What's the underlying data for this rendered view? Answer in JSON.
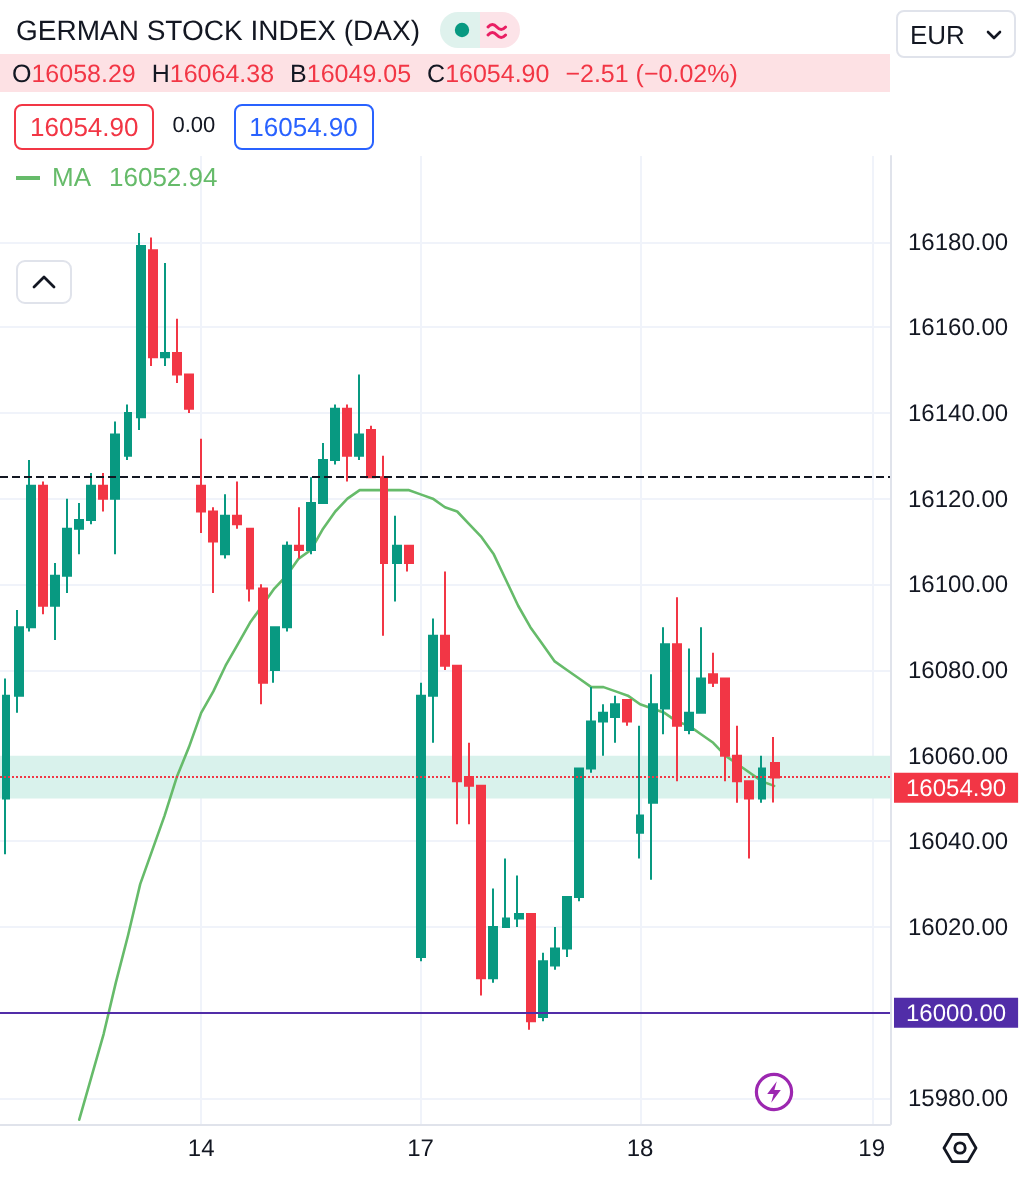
{
  "chart_data": {
    "type": "candlestick",
    "title": "GERMAN STOCK INDEX (DAX)",
    "categories": [
      null,
      null,
      null,
      null,
      null,
      null,
      null,
      null,
      null,
      null,
      null,
      null,
      null,
      null,
      null,
      null,
      "14",
      null,
      null,
      null,
      null,
      null,
      null,
      null,
      null,
      null,
      null,
      null,
      null,
      null,
      null,
      null,
      null,
      null,
      "17",
      null,
      null,
      null,
      null,
      null,
      null,
      null,
      null,
      null,
      null,
      null,
      null,
      null,
      null,
      null,
      null,
      null,
      "18",
      null,
      null,
      null,
      null,
      null,
      null,
      null,
      null,
      null,
      null,
      null,
      null,
      null,
      null,
      null,
      null,
      null,
      null,
      "19",
      null
    ],
    "series": [
      {
        "ohlc": [
          [
            16050,
            16078,
            16037,
            16074
          ],
          [
            16074,
            16094,
            16070,
            16090
          ],
          [
            16090,
            16129,
            16089,
            16123
          ],
          [
            16123,
            16124,
            16093,
            16095
          ],
          [
            16095,
            16105,
            16087,
            16102
          ],
          [
            16102,
            16120,
            16098,
            16113
          ],
          [
            16113,
            16119,
            16107,
            16115
          ],
          [
            16115,
            16126,
            16114,
            16123
          ],
          [
            16123,
            16126,
            16117,
            16120
          ],
          [
            16120,
            16138,
            16107,
            16135
          ],
          [
            16130,
            16142,
            16129,
            16140
          ],
          [
            16139,
            16182,
            16136,
            16179
          ],
          [
            16178,
            16181,
            16151,
            16153
          ],
          [
            16153,
            16175,
            16151,
            16154
          ],
          [
            16154,
            16162,
            16147,
            16149
          ],
          [
            16149,
            16149,
            16140,
            16141
          ],
          [
            16123,
            16134,
            16112,
            16117
          ],
          [
            16117,
            16118,
            16098,
            16110
          ],
          [
            16107,
            16121,
            16106,
            16116
          ],
          [
            16116,
            16124,
            16113,
            16114
          ],
          [
            16113,
            16113,
            16096,
            16099
          ],
          [
            16099,
            16100,
            16072,
            16077
          ],
          [
            16080,
            16090,
            16077,
            16090
          ],
          [
            16090,
            16110,
            16089,
            16109
          ],
          [
            16109,
            16118,
            16106,
            16108
          ],
          [
            16108,
            16125,
            16107,
            16119
          ],
          [
            16119,
            16133,
            16119,
            16129
          ],
          [
            16129,
            16142,
            16128,
            16141
          ],
          [
            16141,
            16142,
            16124,
            16130
          ],
          [
            16130,
            16149,
            16129,
            16135
          ],
          [
            16136,
            16137,
            16125,
            16125
          ],
          [
            16125,
            16130,
            16088,
            16105
          ],
          [
            16105,
            16116,
            16096,
            16109
          ],
          [
            16109,
            16109,
            16103,
            16105
          ],
          [
            16013,
            16077,
            16012,
            16074
          ],
          [
            16074,
            16092,
            16063,
            16088
          ],
          [
            16088,
            16103,
            16080,
            16081
          ],
          [
            16081,
            16081,
            16044,
            16054
          ],
          [
            16055,
            16063,
            16044,
            16053
          ],
          [
            16053,
            16053,
            16004,
            16008
          ],
          [
            16008,
            16029,
            16007,
            16020
          ],
          [
            16020,
            16036,
            16020,
            16022
          ],
          [
            16022,
            16032,
            16020,
            16023
          ],
          [
            16023,
            16023,
            15996,
            15998
          ],
          [
            15999,
            16014,
            15998,
            16012
          ],
          [
            16011,
            16020,
            16010,
            16015
          ],
          [
            16015,
            16027,
            16013,
            16027
          ],
          [
            16027,
            16057,
            16026,
            16057
          ],
          [
            16057,
            16076,
            16056,
            16068
          ],
          [
            16068,
            16072,
            16060,
            16070
          ],
          [
            16069,
            16074,
            16063,
            16072
          ],
          [
            16073,
            16073,
            16067,
            16068
          ],
          [
            16042,
            16067,
            16036,
            16046
          ],
          [
            16049,
            16079,
            16031,
            16072
          ],
          [
            16071,
            16090,
            16065,
            16086
          ],
          [
            16086,
            16097,
            16054,
            16067
          ],
          [
            16066,
            16085,
            16065,
            16070
          ],
          [
            16070,
            16090,
            16070,
            16078
          ],
          [
            16079,
            16084,
            16076,
            16077
          ],
          [
            16078,
            16078,
            16054,
            16060
          ],
          [
            16060,
            16067,
            16049,
            16054
          ],
          [
            16054,
            16054,
            16036,
            16050
          ],
          [
            16050,
            16060,
            16049,
            16057
          ],
          [
            16058.29,
            16064.38,
            16049.05,
            16054.9
          ],
          null,
          null,
          null,
          null,
          null,
          null,
          null,
          null,
          null
        ],
        "colors": [
          "#089981",
          "#089981",
          "#089981",
          "#f23645",
          "#089981",
          "#089981",
          "#089981",
          "#089981",
          "#f23645",
          "#089981",
          "#089981",
          "#089981",
          "#f23645",
          "#089981",
          "#f23645",
          "#f23645",
          "#f23645",
          "#f23645",
          "#089981",
          "#f23645",
          "#f23645",
          "#f23645",
          "#089981",
          "#089981",
          "#f23645",
          "#089981",
          "#089981",
          "#089981",
          "#f23645",
          "#089981",
          "#f23645",
          "#f23645",
          "#089981",
          "#f23645",
          "#089981",
          "#089981",
          "#f23645",
          "#f23645",
          "#f23645",
          "#f23645",
          "#089981",
          "#089981",
          "#089981",
          "#f23645",
          "#089981",
          "#089981",
          "#089981",
          "#089981",
          "#089981",
          "#089981",
          "#089981",
          "#f23645",
          "#089981",
          "#089981",
          "#089981",
          "#f23645",
          "#089981",
          "#089981",
          "#f23645",
          "#f23645",
          "#f23645",
          "#f23645",
          "#089981",
          "#f23645",
          null,
          null,
          null,
          null,
          null,
          null,
          null,
          null,
          null
        ]
      },
      {
        "type": "line",
        "name": "MA",
        "color": "#66bb6a",
        "values": [
          null,
          null,
          null,
          null,
          null,
          null,
          15975,
          15985,
          15995,
          16007,
          16018,
          16030,
          16038,
          16046,
          16055,
          16062,
          16070,
          16075,
          16081,
          16086,
          16091,
          16095,
          16099,
          16102,
          16106,
          16108,
          16113,
          16117,
          16120,
          16122,
          16122,
          16122,
          16122,
          16122,
          16121,
          16120,
          16118,
          16117,
          16114,
          16111,
          16107,
          16101,
          16095,
          16090,
          16086,
          16082,
          16080,
          16078,
          16076,
          16076,
          16075,
          16074,
          16072,
          16071,
          16070,
          16068,
          16067,
          16065,
          16063,
          16060,
          16058,
          16056,
          16054,
          16052.94,
          null,
          null,
          null,
          null,
          null,
          null,
          null,
          null,
          null
        ]
      }
    ],
    "ylim": [
      15974,
      16200
    ],
    "yticks": [
      {
        "value": 15980,
        "label": "15980.00"
      },
      {
        "value": 16000,
        "label": "16000.00"
      },
      {
        "value": 16020,
        "label": "16020.00"
      },
      {
        "value": 16040,
        "label": "16040.00"
      },
      {
        "value": 16060,
        "label": "16060.00"
      },
      {
        "value": 16080,
        "label": "16080.00"
      },
      {
        "value": 16100,
        "label": "16100.00"
      },
      {
        "value": 16120,
        "label": "16120.00"
      },
      {
        "value": 16140,
        "label": "16140.00"
      },
      {
        "value": 16160,
        "label": "16160.00"
      },
      {
        "value": 16180,
        "label": "16180.00"
      }
    ],
    "grid": true,
    "legend": "top left",
    "ref_lines": [
      {
        "axis": "y",
        "value": 16125,
        "line_style": "dashed",
        "color": "#131722"
      },
      {
        "axis": "y",
        "value": 16054.9,
        "label": "16054.90",
        "line_style": "dotted",
        "color": "#f23645"
      },
      {
        "axis": "y",
        "value": 16000,
        "label": "16000.00",
        "line_style": "solid",
        "color": "#512da8"
      }
    ],
    "bands": [
      {
        "axis": "y",
        "from": 16050,
        "to": 16060,
        "color": "#d9f2ec"
      }
    ],
    "annotations": [
      "O16058.29",
      "H16064.38",
      "B16049.05",
      "C16054.90",
      "−2.51 (−0.02%)",
      "16054.90",
      "0.00",
      "16054.90",
      "16052.94",
      "EUR"
    ]
  }
}
